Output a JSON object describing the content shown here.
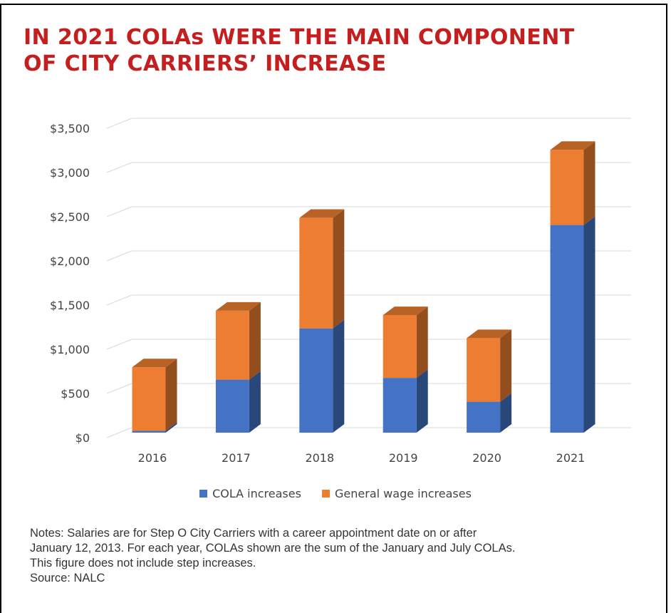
{
  "title_lines": [
    "IN 2021 COLAs WERE THE MAIN COMPONENT",
    "OF CITY CARRIERS’ INCREASE"
  ],
  "notes_lines": [
    "Notes: Salaries are for Step O City Carriers with a career appointment date on or after",
    "January 12, 2013. For each year, COLAs shown are the sum of the January and July COLAs.",
    "This figure does not include step increases.",
    "Source: NALC"
  ],
  "chart_data": {
    "type": "bar",
    "stacked": true,
    "three_d": true,
    "categories": [
      "2016",
      "2017",
      "2018",
      "2019",
      "2020",
      "2021"
    ],
    "series": [
      {
        "name": "COLA increases",
        "color": "#4472c4",
        "values": [
          20,
          600,
          1180,
          620,
          350,
          2350
        ]
      },
      {
        "name": "General wage increases",
        "color": "#ed7d31",
        "values": [
          720,
          780,
          1250,
          710,
          720,
          850
        ]
      }
    ],
    "ylim": [
      0,
      3500
    ],
    "yticks": [
      "$0",
      "$500",
      "$1,000",
      "$1,500",
      "$2,000",
      "$2,500",
      "$3,000",
      "$3,500"
    ],
    "grid": true,
    "legend_position": "bottom"
  }
}
